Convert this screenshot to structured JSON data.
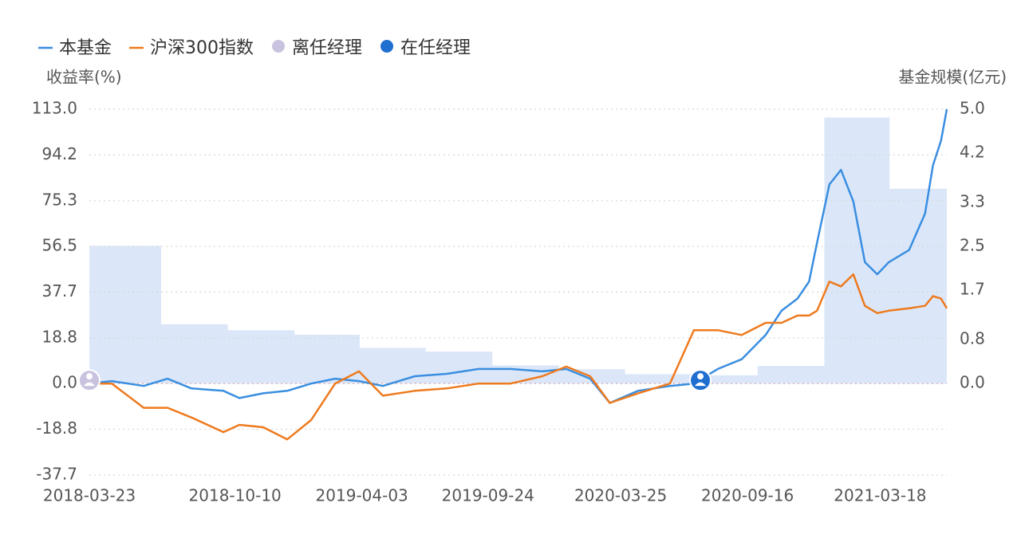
{
  "chart_data": {
    "type": "line",
    "y_label": "收益率(%)",
    "y2_label": "基金规模(亿元)",
    "xlim": [
      "2018-03-23",
      "2021-06-18"
    ],
    "xticks": [
      "2018-03-23",
      "2018-10-10",
      "2019-04-03",
      "2019-09-24",
      "2020-03-25",
      "2020-09-16",
      "2021-03-18"
    ],
    "ylim": [
      -37.7,
      113.0
    ],
    "yticks": [
      {
        "value": 113,
        "label": "113.0"
      },
      94.2,
      75.3,
      56.5,
      37.7,
      18.8,
      {
        "value": 0,
        "label": "0.0"
      },
      -18.8,
      -37.7
    ],
    "y2lim": [
      -1.67,
      5.0
    ],
    "y2ticks": [
      {
        "value": 5,
        "label": "5.0"
      },
      4.2,
      3.3,
      2.5,
      1.7,
      0.8,
      {
        "value": 0,
        "label": "0.0"
      }
    ],
    "grid": true,
    "x": [
      "2018-03-23",
      "2018-04-23",
      "2018-06-06",
      "2018-07-09",
      "2018-08-11",
      "2018-09-24",
      "2018-10-16",
      "2018-11-18",
      "2018-12-21",
      "2019-01-23",
      "2019-02-25",
      "2019-03-30",
      "2019-05-02",
      "2019-06-15",
      "2019-07-29",
      "2019-09-11",
      "2019-10-25",
      "2019-12-08",
      "2020-01-10",
      "2020-02-12",
      "2020-03-10",
      "2020-04-18",
      "2020-06-01",
      "2020-07-04",
      "2020-08-06",
      "2020-09-08",
      "2020-10-11",
      "2020-11-02",
      "2020-11-24",
      "2020-12-10",
      "2020-12-21",
      "2021-01-07",
      "2021-01-23",
      "2021-02-09",
      "2021-02-25",
      "2021-03-14",
      "2021-03-30",
      "2021-04-27",
      "2021-05-19",
      "2021-05-30",
      "2021-06-10",
      "2021-06-18"
    ],
    "series": [
      {
        "name": "本基金",
        "color": "#3a8ee0",
        "values": [
          0,
          1,
          -1,
          2,
          -2,
          -3,
          -6,
          -4,
          -3,
          0,
          2,
          1,
          -1,
          3,
          4,
          6,
          6,
          5,
          6,
          2,
          -8,
          -3,
          -1,
          0,
          6,
          10,
          20,
          30,
          35,
          42,
          58,
          82,
          88,
          75,
          50,
          45,
          50,
          55,
          70,
          90,
          100,
          113
        ]
      },
      {
        "name": "沪深300指数",
        "color": "#ee7a1e",
        "values": [
          0,
          0,
          -10,
          -10,
          -14,
          -20,
          -17,
          -18,
          -23,
          -15,
          0,
          5,
          -5,
          -3,
          -2,
          0,
          0,
          3,
          7,
          3,
          -8,
          -4,
          0,
          22,
          22,
          20,
          25,
          25,
          28,
          28,
          30,
          42,
          40,
          45,
          32,
          29,
          30,
          31,
          32,
          36,
          35,
          31
        ]
      }
    ],
    "markers": [
      {
        "name": "离任经理",
        "color": "#c9c3df",
        "x": "2018-03-23",
        "y": 0
      },
      {
        "name": "在任经理",
        "color": "#1f6fd1",
        "x": "2020-07-13",
        "y": 0
      }
    ],
    "scale": {
      "axis": "y2",
      "color": "#dbe7f9",
      "x": [
        "2018-03-23",
        "2018-06-30",
        "2018-09-30",
        "2018-12-31",
        "2019-03-31",
        "2019-06-30",
        "2019-09-30",
        "2019-12-31",
        "2020-03-31",
        "2020-06-30",
        "2020-09-30",
        "2020-12-31",
        "2021-03-31"
      ],
      "values": [
        2.51,
        1.08,
        0.97,
        0.89,
        0.65,
        0.58,
        0.33,
        0.26,
        0.17,
        0.15,
        0.32,
        4.85,
        3.55
      ]
    }
  }
}
